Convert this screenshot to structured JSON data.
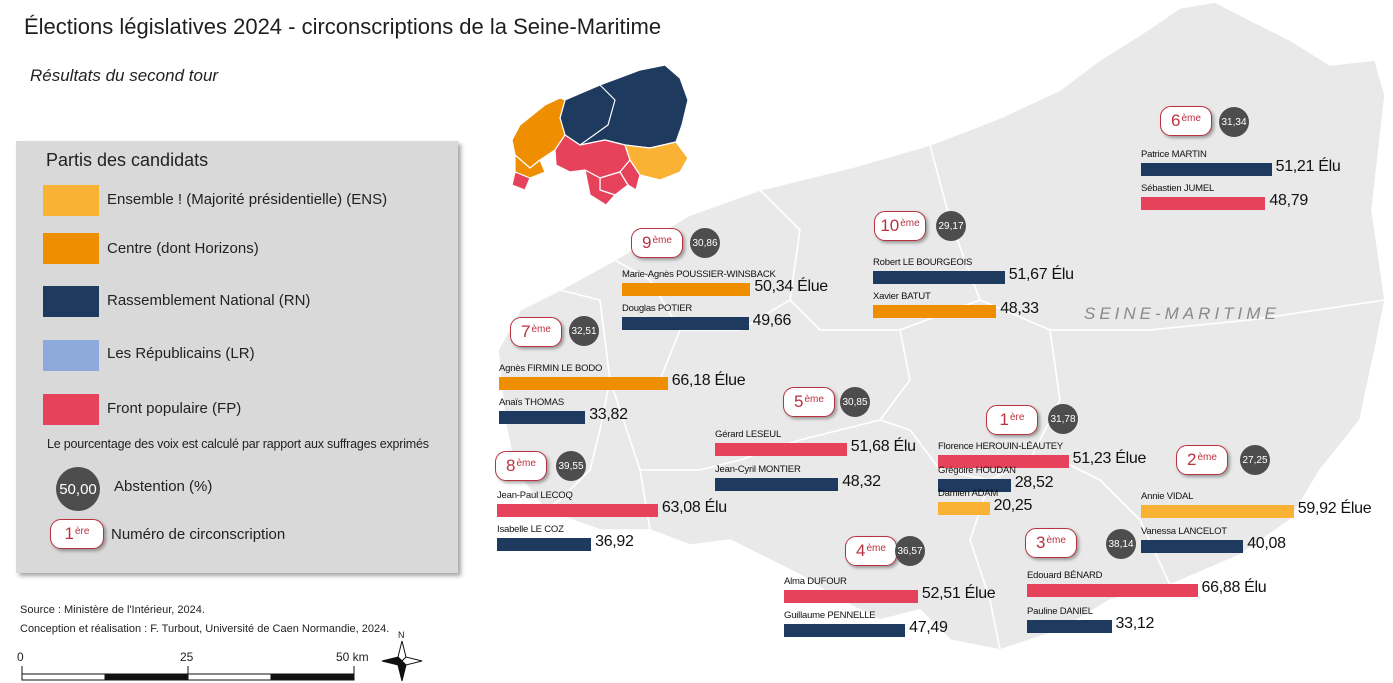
{
  "title": "Élections législatives 2024 - circonscriptions de la Seine-Maritime",
  "subtitle": "Résultats du second tour",
  "department_label": "SEINE-MARITIME",
  "colors": {
    "ENS": "#f9b233",
    "HOR": "#ef8e00",
    "RN": "#1e3a5f",
    "LR": "#8eaadc",
    "FP": "#e6425b",
    "map_fill": "#e9e9e9",
    "map_stroke": "#ffffff",
    "badge_red": "#b8323f",
    "abstention": "#4d4d4d"
  },
  "legend": {
    "title": "Partis des candidats",
    "parties": [
      {
        "code": "ENS",
        "label": "Ensemble ! (Majorité présidentielle) (ENS)",
        "color": "#f9b233"
      },
      {
        "code": "HOR",
        "label": "Centre (dont Horizons)",
        "color": "#ef8e00"
      },
      {
        "code": "RN",
        "label": "Rassemblement National (RN)",
        "color": "#1e3a5f"
      },
      {
        "code": "LR",
        "label": "Les Républicains (LR)",
        "color": "#8eaadc"
      },
      {
        "code": "FP",
        "label": "Front populaire (FP)",
        "color": "#e6425b"
      }
    ],
    "note": "Le pourcentage des voix est calculé par rapport aux suffrages exprimés",
    "abstention_example": "50,00",
    "abstention_label": "Abstention (%)",
    "number_example_num": "1",
    "number_example_sup": "ère",
    "number_label": "Numéro de circonscription"
  },
  "source_line1": "Source : Ministère de l'Intérieur, 2024.",
  "source_line2": "Conception et réalisation : F. Turbout, Université de Caen Normandie, 2024.",
  "scale": {
    "labels": [
      "0",
      "25",
      "50 km"
    ]
  },
  "north_label": "N",
  "circonscriptions": [
    {
      "num": "1",
      "sup": "ère",
      "abstention": "31,78",
      "candidates": [
        {
          "name": "Florence HEROUIN-LÉAUTEY",
          "party": "FP",
          "value": 51.23,
          "label": "51,23 Élue"
        },
        {
          "name": "Grégoire HOUDAN",
          "party": "RN",
          "value": 28.52,
          "label": "28,52"
        },
        {
          "name": "Damien ADAM",
          "party": "ENS",
          "value": 20.25,
          "label": "20,25"
        }
      ]
    },
    {
      "num": "2",
      "sup": "ème",
      "abstention": "27,25",
      "candidates": [
        {
          "name": "Annie VIDAL",
          "party": "ENS",
          "value": 59.92,
          "label": "59,92 Élue"
        },
        {
          "name": "Vanessa LANCELOT",
          "party": "RN",
          "value": 40.08,
          "label": "40,08"
        }
      ]
    },
    {
      "num": "3",
      "sup": "ème",
      "abstention": "38,14",
      "candidates": [
        {
          "name": "Edouard BÉNARD",
          "party": "FP",
          "value": 66.88,
          "label": "66,88 Élu"
        },
        {
          "name": "Pauline DANIEL",
          "party": "RN",
          "value": 33.12,
          "label": "33,12"
        }
      ]
    },
    {
      "num": "4",
      "sup": "ème",
      "abstention": "36,57",
      "candidates": [
        {
          "name": "Alma DUFOUR",
          "party": "FP",
          "value": 52.51,
          "label": "52,51 Élue"
        },
        {
          "name": "Guillaume PENNELLE",
          "party": "RN",
          "value": 47.49,
          "label": "47,49"
        }
      ]
    },
    {
      "num": "5",
      "sup": "ème",
      "abstention": "30,85",
      "candidates": [
        {
          "name": "Gérard LESEUL",
          "party": "FP",
          "value": 51.68,
          "label": "51,68 Élu"
        },
        {
          "name": "Jean-Cyril MONTIER",
          "party": "RN",
          "value": 48.32,
          "label": "48,32"
        }
      ]
    },
    {
      "num": "6",
      "sup": "ème",
      "abstention": "31,34",
      "candidates": [
        {
          "name": "Patrice MARTIN",
          "party": "RN",
          "value": 51.21,
          "label": "51,21 Élu"
        },
        {
          "name": "Sébastien JUMEL",
          "party": "FP",
          "value": 48.79,
          "label": "48,79"
        }
      ]
    },
    {
      "num": "7",
      "sup": "ème",
      "abstention": "32,51",
      "candidates": [
        {
          "name": "Agnès FIRMIN LE BODO",
          "party": "HOR",
          "value": 66.18,
          "label": "66,18 Élue"
        },
        {
          "name": "Anaïs THOMAS",
          "party": "RN",
          "value": 33.82,
          "label": "33,82"
        }
      ]
    },
    {
      "num": "8",
      "sup": "ème",
      "abstention": "39,55",
      "candidates": [
        {
          "name": "Jean-Paul LECOQ",
          "party": "FP",
          "value": 63.08,
          "label": "63,08 Élu"
        },
        {
          "name": "Isabelle LE COZ",
          "party": "RN",
          "value": 36.92,
          "label": "36,92"
        }
      ]
    },
    {
      "num": "9",
      "sup": "ème",
      "abstention": "30,86",
      "candidates": [
        {
          "name": "Marie-Agnès POUSSIER-WINSBACK",
          "party": "HOR",
          "value": 50.34,
          "label": "50,34 Élue"
        },
        {
          "name": "Douglas POTIER",
          "party": "RN",
          "value": 49.66,
          "label": "49,66"
        }
      ]
    },
    {
      "num": "10",
      "sup": "ème",
      "abstention": "29,17",
      "candidates": [
        {
          "name": "Robert LE BOURGEOIS",
          "party": "RN",
          "value": 51.67,
          "label": "51,67 Élu"
        },
        {
          "name": "Xavier BATUT",
          "party": "HOR",
          "value": 48.33,
          "label": "48,33"
        }
      ]
    }
  ]
}
